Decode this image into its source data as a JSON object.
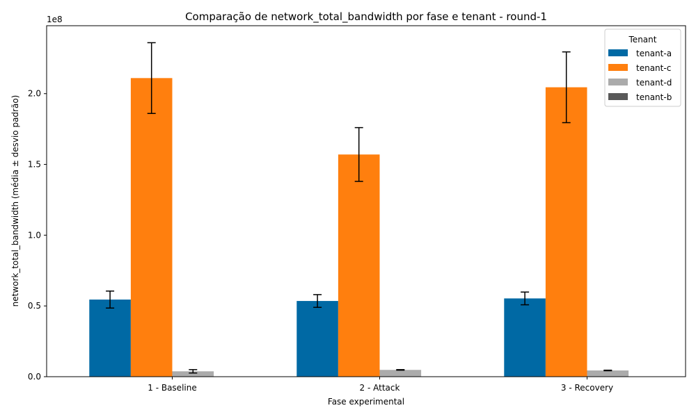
{
  "chart_data": {
    "type": "bar",
    "title": "Comparação de network_total_bandwidth por fase e tenant - round-1",
    "xlabel": "Fase experimental",
    "ylabel": "network_total_bandwidth (média ± desvio padrão)",
    "y_scale_label": "1e8",
    "y_multiplier": 100000000,
    "ylim": [
      0,
      2.48
    ],
    "yticks": [
      0.0,
      0.5,
      1.0,
      1.5,
      2.0
    ],
    "ytick_labels": [
      "0.0",
      "0.5",
      "1.0",
      "1.5",
      "2.0"
    ],
    "categories": [
      "1 - Baseline",
      "2 - Attack",
      "3 - Recovery"
    ],
    "legend": {
      "title": "Tenant",
      "position": "top-right"
    },
    "grid": false,
    "error_bars": true,
    "series": [
      {
        "name": "tenant-a",
        "color": "#0069a4",
        "values": [
          0.545,
          0.535,
          0.553
        ],
        "errors": [
          0.06,
          0.045,
          0.045
        ]
      },
      {
        "name": "tenant-c",
        "color": "#ff7f0e",
        "values": [
          2.11,
          1.57,
          2.045
        ],
        "errors": [
          0.25,
          0.19,
          0.25
        ]
      },
      {
        "name": "tenant-d",
        "color": "#ababab",
        "values": [
          0.038,
          0.048,
          0.044
        ],
        "errors": [
          0.012,
          0.002,
          0.002
        ]
      },
      {
        "name": "tenant-b",
        "color": "#595959",
        "values": [
          0.0,
          0.002,
          0.002
        ],
        "errors": [
          0.0,
          0.0,
          0.0
        ]
      }
    ]
  }
}
